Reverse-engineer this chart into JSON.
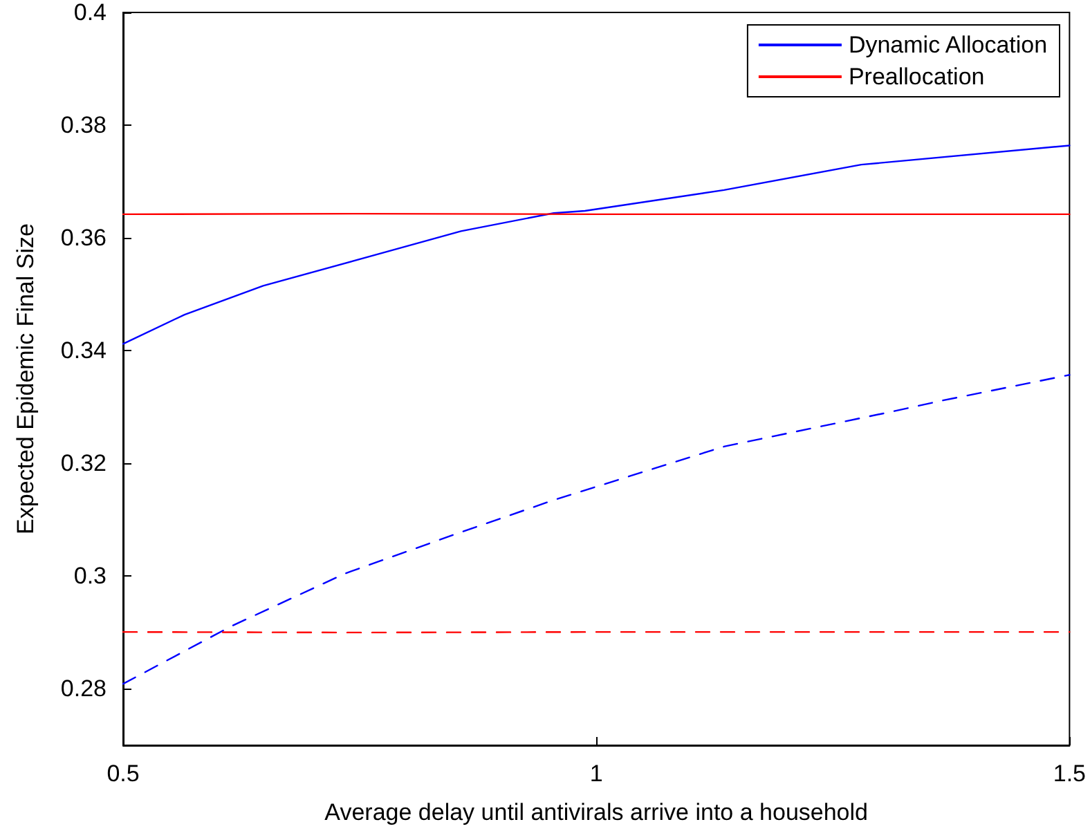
{
  "chart_data": {
    "type": "line",
    "xlabel": "Average delay until antivirals arrive into a household",
    "ylabel": "Expected Epidemic Final Size",
    "xlim": [
      0.5,
      1.5
    ],
    "xticks": [
      0.5,
      1,
      1.5
    ],
    "ylim": [
      0.27,
      0.4
    ],
    "yticks": [
      0.28,
      0.3,
      0.32,
      0.34,
      0.36,
      0.38,
      0.4
    ],
    "legend": "top right",
    "grid": false,
    "marker": "none",
    "series": [
      {
        "name": "Dynamic Allocation",
        "color": "#0000ff",
        "line_style": "solid",
        "x": [
          0.5,
          0.565,
          0.648,
          0.76,
          0.857,
          0.955,
          0.988,
          1.135,
          1.28,
          1.5
        ],
        "values": [
          0.3412,
          0.3464,
          0.3515,
          0.3567,
          0.3612,
          0.3644,
          0.3648,
          0.3685,
          0.373,
          0.3764
        ]
      },
      {
        "name": "Preallocation",
        "color": "#ff0000",
        "line_style": "solid",
        "x": [
          0.5,
          0.75,
          1,
          1.25,
          1.5
        ],
        "values": [
          0.3642,
          0.3643,
          0.3642,
          0.3642,
          0.3642
        ]
      },
      {
        "color": "#0000ff",
        "line_style": "dashed",
        "x": [
          0.5,
          0.614,
          0.735,
          0.857,
          0.955,
          1.135,
          1.31,
          1.364,
          1.5
        ],
        "values": [
          0.2809,
          0.2911,
          0.3005,
          0.3078,
          0.3135,
          0.323,
          0.3291,
          0.3311,
          0.3357
        ]
      },
      {
        "color": "#ff0000",
        "line_style": "dashed",
        "x": [
          0.5,
          0.75,
          1,
          1.25,
          1.5
        ],
        "values": [
          0.2901,
          0.29,
          0.2901,
          0.2901,
          0.2901
        ]
      }
    ]
  }
}
